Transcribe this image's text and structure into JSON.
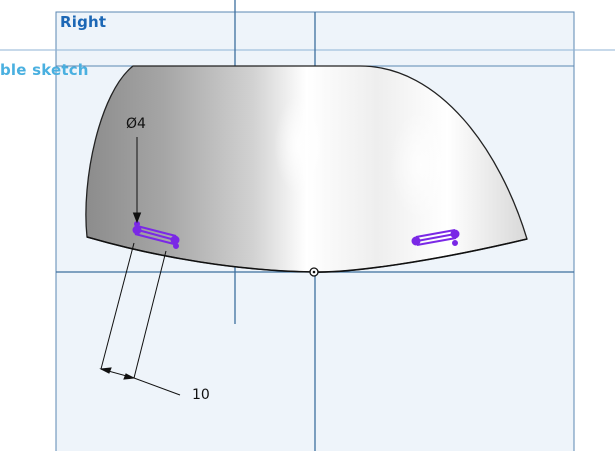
{
  "viewport": {
    "plane_label": "Right",
    "sketch_label": "ble sketch",
    "dimensions": {
      "diameter": "Ø4",
      "length": "10"
    }
  },
  "colors": {
    "plane_fill": "#eef4fa",
    "plane_edge": "#5b87b3",
    "axis_line": "#3d6f9e",
    "label_blue": "#1c67b5",
    "sketch_label_blue": "#4ab0e0",
    "sketch_geometry": "#7a28e6",
    "dimension_line": "#111111"
  },
  "icons": {
    "origin": "origin-point-icon",
    "arrow": "dimension-arrow-icon"
  }
}
